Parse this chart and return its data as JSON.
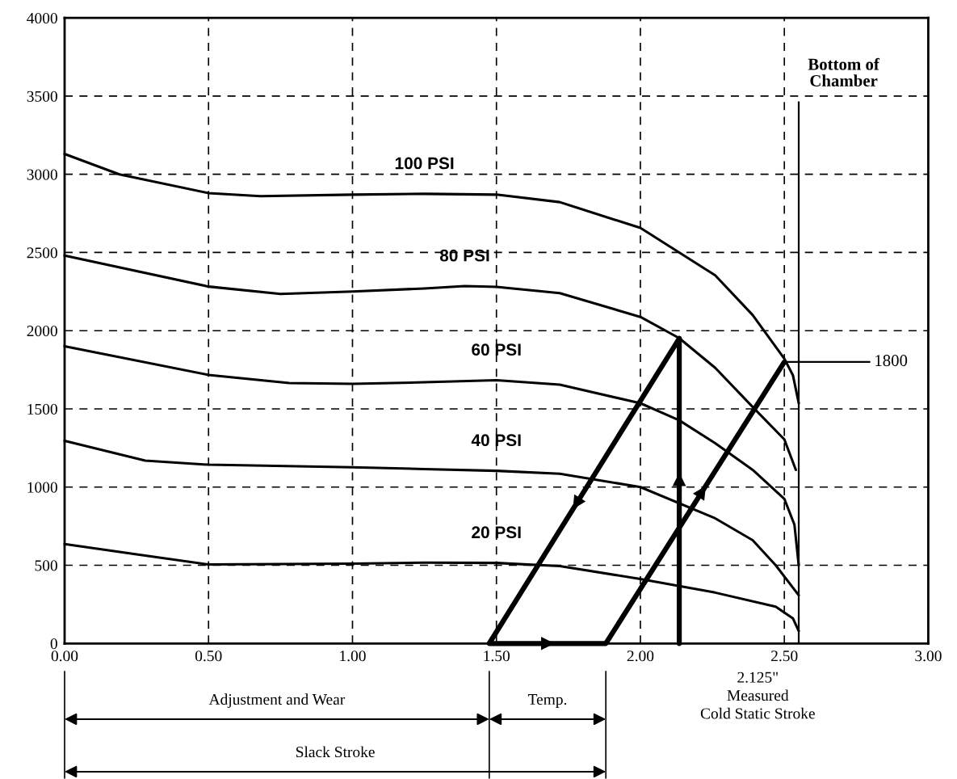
{
  "chart_data": {
    "type": "line",
    "xlim": [
      0,
      3
    ],
    "ylim": [
      0,
      4000
    ],
    "xticks": [
      {
        "value": 0,
        "label": "0.00"
      },
      {
        "value": 0.5,
        "label": "0.50"
      },
      {
        "value": 1,
        "label": "1.00"
      },
      {
        "value": 1.5,
        "label": "1.50"
      },
      {
        "value": 2,
        "label": "2.00"
      },
      {
        "value": 2.5,
        "label": "2.50"
      },
      {
        "value": 3,
        "label": "3.00"
      }
    ],
    "yticks": [
      0,
      500,
      1000,
      1500,
      2000,
      2500,
      3000,
      3500,
      4000
    ],
    "grid": true,
    "line_style": "solid",
    "series": [
      {
        "name": "100 PSI",
        "color": "#000000",
        "x": [
          0,
          0.19,
          0.5,
          0.68,
          1.0,
          1.25,
          1.5,
          1.72,
          2.0,
          2.135,
          2.26,
          2.39,
          2.5,
          2.53,
          2.55
        ],
        "values": [
          3130,
          3000,
          2880,
          2860,
          2870,
          2875,
          2870,
          2822,
          2657,
          2500,
          2354,
          2100,
          1821,
          1714,
          1536
        ]
      },
      {
        "name": "80 PSI",
        "color": "#000000",
        "x": [
          0,
          0.5,
          0.75,
          1.0,
          1.25,
          1.39,
          1.5,
          1.72,
          2.0,
          2.135,
          2.26,
          2.39,
          2.5,
          2.54
        ],
        "values": [
          2480,
          2282,
          2235,
          2250,
          2270,
          2285,
          2280,
          2240,
          2088,
          1952,
          1762,
          1512,
          1305,
          1110
        ]
      },
      {
        "name": "60 PSI",
        "color": "#000000",
        "x": [
          0,
          0.5,
          0.78,
          1.0,
          1.25,
          1.5,
          1.72,
          2.0,
          2.135,
          2.26,
          2.39,
          2.5,
          2.535,
          2.55
        ],
        "values": [
          1900,
          1717,
          1665,
          1660,
          1670,
          1683,
          1655,
          1536,
          1427,
          1280,
          1110,
          925,
          760,
          500
        ]
      },
      {
        "name": "40 PSI",
        "color": "#000000",
        "x": [
          0,
          0.28,
          0.5,
          1.0,
          1.25,
          1.5,
          1.72,
          2.0,
          2.26,
          2.39,
          2.47,
          2.55
        ],
        "values": [
          1296,
          1169,
          1143,
          1127,
          1115,
          1104,
          1085,
          1000,
          800,
          660,
          500,
          308
        ]
      },
      {
        "name": "20 PSI",
        "color": "#000000",
        "x": [
          0,
          0.25,
          0.5,
          1.0,
          1.25,
          1.5,
          1.72,
          2.0,
          2.26,
          2.47,
          2.53,
          2.55
        ],
        "values": [
          636,
          570,
          505,
          510,
          517,
          515,
          495,
          412,
          325,
          235,
          160,
          80
        ]
      },
      {
        "type": "line",
        "color": "#000000",
        "x": [
          2.135,
          1.475,
          1.88,
          2.5
        ],
        "values": [
          1950,
          0,
          0,
          1800
        ]
      },
      {
        "type": "line",
        "color": "#000000",
        "x": [
          2.135,
          2.135
        ],
        "values": [
          0,
          1950
        ]
      }
    ],
    "ref_lines": [
      {
        "axis": "x",
        "value": 2.55,
        "label": "Bottom of\nChamber",
        "color": "#000000",
        "line_style": "solid"
      }
    ],
    "annotations": [
      "Adjustment and Wear",
      "Temp.",
      "Slack Stroke",
      "2.125\"\nMeasured\nCold Static Stroke",
      {
        "text": "1800",
        "x": 2.5,
        "y": 1800
      }
    ]
  }
}
